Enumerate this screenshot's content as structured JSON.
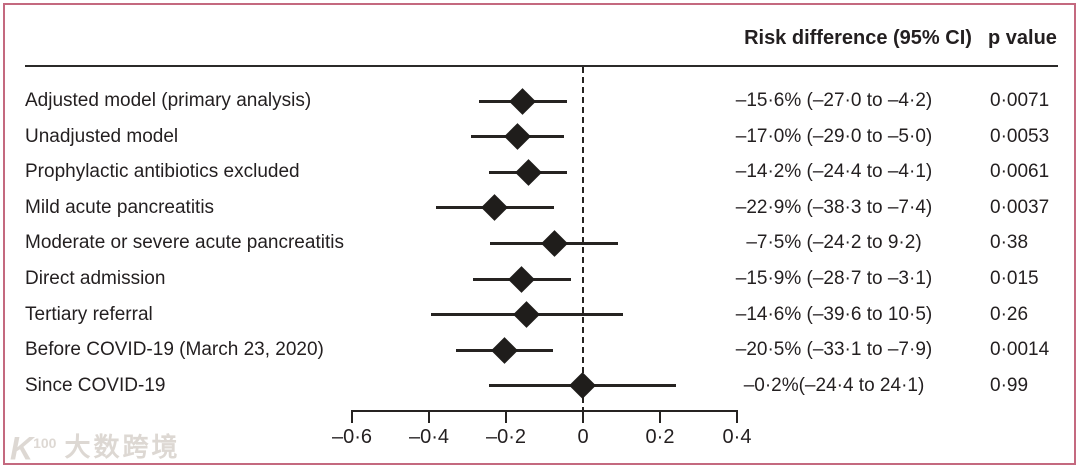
{
  "header": {
    "risk_col": "Risk difference (95% CI)",
    "p_col": "p value"
  },
  "watermark": {
    "logo_main": "K",
    "logo_sup": "100",
    "brand": "大数跨境"
  },
  "chart_data": {
    "type": "forest",
    "title": "",
    "xlabel": "",
    "ylabel": "",
    "xlim": [
      -0.6,
      0.4
    ],
    "zero_line": 0,
    "grid": false,
    "legend": "none",
    "ticks": [
      {
        "value": -0.6,
        "label": "–0·6"
      },
      {
        "value": -0.4,
        "label": "–0·4"
      },
      {
        "value": -0.2,
        "label": "–0·2"
      },
      {
        "value": 0,
        "label": "0"
      },
      {
        "value": 0.2,
        "label": "0·2"
      },
      {
        "value": 0.4,
        "label": "0·4"
      }
    ],
    "rows": [
      {
        "label": "Adjusted model (primary analysis)",
        "estimate_pct": -15.6,
        "ci_low_pct": -27.0,
        "ci_high_pct": -4.2,
        "ci_text": "–15·6% (–27·0 to –4·2)",
        "p_value": "0·0071"
      },
      {
        "label": "Unadjusted model",
        "estimate_pct": -17.0,
        "ci_low_pct": -29.0,
        "ci_high_pct": -5.0,
        "ci_text": "–17·0% (–29·0 to –5·0)",
        "p_value": "0·0053"
      },
      {
        "label": "Prophylactic antibiotics excluded",
        "estimate_pct": -14.2,
        "ci_low_pct": -24.4,
        "ci_high_pct": -4.1,
        "ci_text": "–14·2% (–24·4 to –4·1)",
        "p_value": "0·0061"
      },
      {
        "label": "Mild acute pancreatitis",
        "estimate_pct": -22.9,
        "ci_low_pct": -38.3,
        "ci_high_pct": -7.4,
        "ci_text": "–22·9% (–38·3 to –7·4)",
        "p_value": "0·0037"
      },
      {
        "label": "Moderate or severe acute pancreatitis",
        "estimate_pct": -7.5,
        "ci_low_pct": -24.2,
        "ci_high_pct": 9.2,
        "ci_text": "–7·5% (–24·2 to 9·2)",
        "p_value": "0·38"
      },
      {
        "label": "Direct admission",
        "estimate_pct": -15.9,
        "ci_low_pct": -28.7,
        "ci_high_pct": -3.1,
        "ci_text": "–15·9% (–28·7 to –3·1)",
        "p_value": "0·015"
      },
      {
        "label": "Tertiary referral",
        "estimate_pct": -14.6,
        "ci_low_pct": -39.6,
        "ci_high_pct": 10.5,
        "ci_text": "–14·6% (–39·6 to 10·5)",
        "p_value": "0·26"
      },
      {
        "label": "Before COVID-19 (March 23, 2020)",
        "estimate_pct": -20.5,
        "ci_low_pct": -33.1,
        "ci_high_pct": -7.9,
        "ci_text": "–20·5% (–33·1 to –7·9)",
        "p_value": "0·0014"
      },
      {
        "label": "Since COVID-19",
        "estimate_pct": -0.2,
        "ci_low_pct": -24.4,
        "ci_high_pct": 24.1,
        "ci_text": "–0·2%(–24·4 to 24·1)",
        "p_value": "0·99"
      }
    ],
    "colors": {
      "marker": "#1f1d1b",
      "line": "#262321",
      "text": "#231f20",
      "frame_border": "#c4697f"
    }
  }
}
